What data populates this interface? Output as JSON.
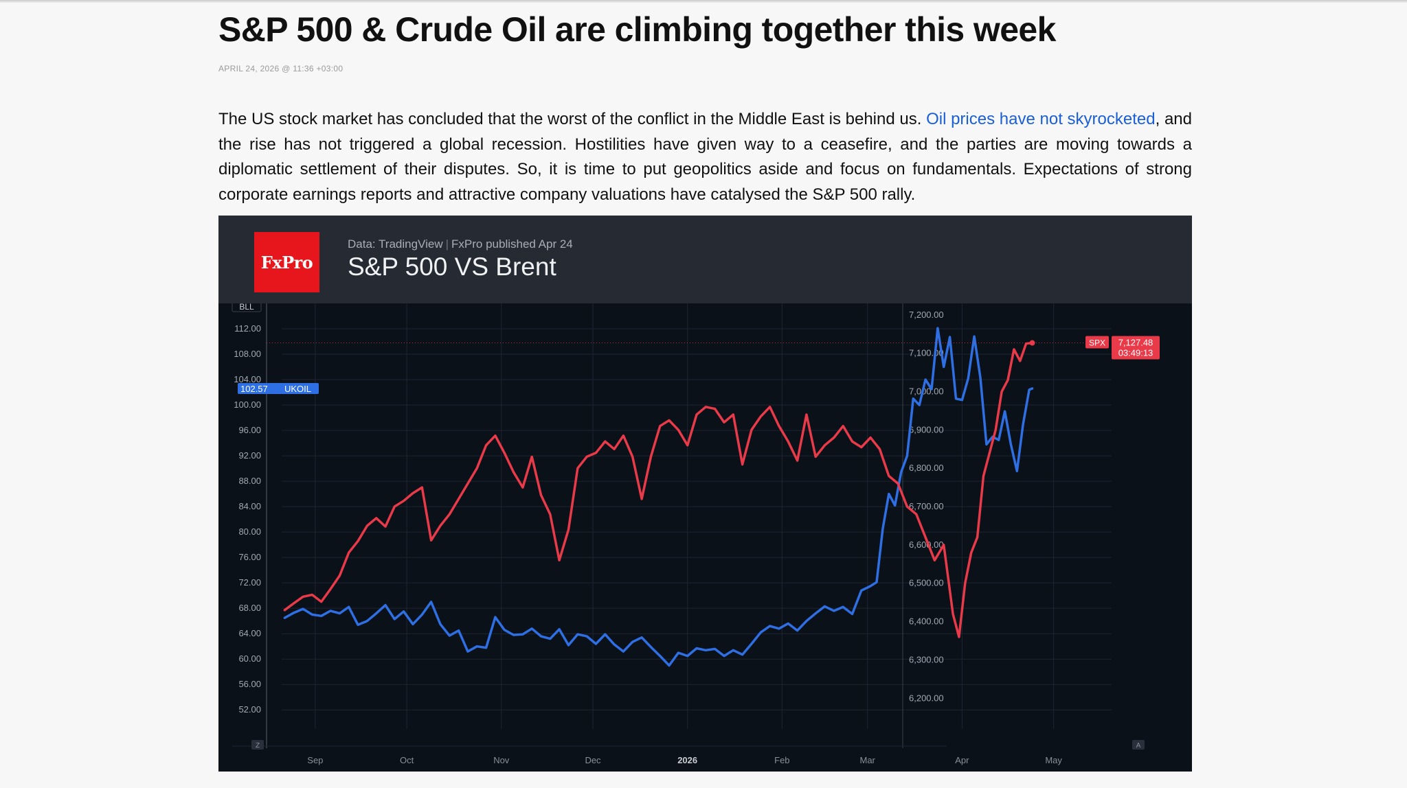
{
  "article": {
    "title": "S&P 500 & Crude Oil are climbing together this week",
    "meta": "APRIL 24, 2026 @ 11:36 +03:00",
    "para_before": "The US stock market has concluded that the worst of the conflict in the Middle East is behind us. ",
    "link_text": "Oil prices have not skyrocketed",
    "para_after": ", and the rise has not triggered a global recession. Hostilities have given way to a ceasefire, and the parties are moving towards a diplomatic settlement of their disputes. So, it is time to put geopolitics aside and focus on fundamentals. Expectations of strong corporate earnings reports and attractive company valuations have catalysed the S&P 500 rally.",
    "link_color": "#1a5fd6"
  },
  "chart_header": {
    "logo_text": "FxPro",
    "source": "Data: TradingView",
    "published": "FxPro published Apr 24",
    "title": "S&P 500 VS Brent"
  },
  "chart_data": {
    "type": "line",
    "title": "S&P 500 VS Brent",
    "x_ticks": [
      {
        "label": "Sep",
        "date": "2025-09-01",
        "bold": false
      },
      {
        "label": "Oct",
        "date": "2025-10-01",
        "bold": false
      },
      {
        "label": "Nov",
        "date": "2025-11-01",
        "bold": false
      },
      {
        "label": "Dec",
        "date": "2025-12-01",
        "bold": false
      },
      {
        "label": "2026",
        "date": "2026-01-01",
        "bold": true
      },
      {
        "label": "Feb",
        "date": "2026-02-01",
        "bold": false
      },
      {
        "label": "Mar",
        "date": "2026-03-01",
        "bold": false
      },
      {
        "label": "Apr",
        "date": "2026-04-01",
        "bold": false
      },
      {
        "label": "May",
        "date": "2026-05-01",
        "bold": false
      }
    ],
    "x_range": [
      "2025-08-21",
      "2026-05-20"
    ],
    "left_axis": {
      "unit_label": "BLL",
      "range": [
        49,
        116
      ],
      "ticks": [
        "52.00",
        "56.00",
        "60.00",
        "64.00",
        "68.00",
        "72.00",
        "76.00",
        "80.00",
        "84.00",
        "88.00",
        "92.00",
        "96.00",
        "100.00",
        "104.00",
        "108.00",
        "112.00"
      ],
      "tick_values": [
        52,
        56,
        60,
        64,
        68,
        72,
        76,
        80,
        84,
        88,
        92,
        96,
        100,
        104,
        108,
        112
      ]
    },
    "right_axis": {
      "range": [
        6120,
        7230
      ],
      "ticks": [
        "6,200.00",
        "6,300.00",
        "6,400.00",
        "6,500.00",
        "6,600.00",
        "6,700.00",
        "6,800.00",
        "6,900.00",
        "7,000.00",
        "7,100.00",
        "7,200.00"
      ],
      "tick_values": [
        6200,
        6300,
        6400,
        6500,
        6600,
        6700,
        6800,
        6900,
        7000,
        7100,
        7200
      ]
    },
    "grid": true,
    "corner_left": "Z",
    "corner_right": "A",
    "series": [
      {
        "name": "UKOIL",
        "axis": "left",
        "color": "#2f6fe4",
        "last_value_label": "102.57",
        "points": [
          [
            "2025-08-22",
            66.5
          ],
          [
            "2025-08-25",
            67.3
          ],
          [
            "2025-08-28",
            67.9
          ],
          [
            "2025-08-31",
            67.0
          ],
          [
            "2025-09-03",
            66.8
          ],
          [
            "2025-09-06",
            67.6
          ],
          [
            "2025-09-09",
            67.2
          ],
          [
            "2025-09-12",
            68.2
          ],
          [
            "2025-09-15",
            65.4
          ],
          [
            "2025-09-18",
            66.0
          ],
          [
            "2025-09-21",
            67.2
          ],
          [
            "2025-09-24",
            68.5
          ],
          [
            "2025-09-27",
            66.3
          ],
          [
            "2025-09-30",
            67.5
          ],
          [
            "2025-10-03",
            65.5
          ],
          [
            "2025-10-06",
            67.0
          ],
          [
            "2025-10-09",
            69.0
          ],
          [
            "2025-10-12",
            65.5
          ],
          [
            "2025-10-15",
            63.7
          ],
          [
            "2025-10-18",
            64.5
          ],
          [
            "2025-10-21",
            61.2
          ],
          [
            "2025-10-24",
            62.0
          ],
          [
            "2025-10-27",
            61.8
          ],
          [
            "2025-10-30",
            66.6
          ],
          [
            "2025-11-02",
            64.6
          ],
          [
            "2025-11-05",
            63.8
          ],
          [
            "2025-11-08",
            63.9
          ],
          [
            "2025-11-11",
            64.8
          ],
          [
            "2025-11-14",
            63.6
          ],
          [
            "2025-11-17",
            63.2
          ],
          [
            "2025-11-20",
            64.7
          ],
          [
            "2025-11-23",
            62.2
          ],
          [
            "2025-11-26",
            63.9
          ],
          [
            "2025-11-29",
            63.6
          ],
          [
            "2025-12-02",
            62.4
          ],
          [
            "2025-12-05",
            63.9
          ],
          [
            "2025-12-08",
            62.3
          ],
          [
            "2025-12-11",
            61.2
          ],
          [
            "2025-12-14",
            62.7
          ],
          [
            "2025-12-17",
            63.4
          ],
          [
            "2025-12-20",
            61.9
          ],
          [
            "2025-12-23",
            60.5
          ],
          [
            "2025-12-26",
            59.0
          ],
          [
            "2025-12-29",
            61.0
          ],
          [
            "2026-01-01",
            60.5
          ],
          [
            "2026-01-04",
            61.7
          ],
          [
            "2026-01-07",
            61.4
          ],
          [
            "2026-01-10",
            61.6
          ],
          [
            "2026-01-13",
            60.5
          ],
          [
            "2026-01-16",
            61.4
          ],
          [
            "2026-01-19",
            60.7
          ],
          [
            "2026-01-22",
            62.4
          ],
          [
            "2026-01-25",
            64.2
          ],
          [
            "2026-01-28",
            65.2
          ],
          [
            "2026-01-31",
            64.8
          ],
          [
            "2026-02-03",
            65.6
          ],
          [
            "2026-02-06",
            64.5
          ],
          [
            "2026-02-09",
            66.0
          ],
          [
            "2026-02-12",
            67.2
          ],
          [
            "2026-02-15",
            68.3
          ],
          [
            "2026-02-18",
            67.6
          ],
          [
            "2026-02-21",
            68.2
          ],
          [
            "2026-02-24",
            67.1
          ],
          [
            "2026-02-27",
            70.8
          ],
          [
            "2026-03-02",
            71.5
          ],
          [
            "2026-03-04",
            72.1
          ],
          [
            "2026-03-06",
            80.5
          ],
          [
            "2026-03-08",
            86.0
          ],
          [
            "2026-03-10",
            84.2
          ],
          [
            "2026-03-12",
            89.4
          ],
          [
            "2026-03-14",
            92.0
          ],
          [
            "2026-03-16",
            101.0
          ],
          [
            "2026-03-18",
            100.0
          ],
          [
            "2026-03-20",
            104.0
          ],
          [
            "2026-03-22",
            102.5
          ],
          [
            "2026-03-24",
            112.1
          ],
          [
            "2026-03-26",
            106.0
          ],
          [
            "2026-03-28",
            110.7
          ],
          [
            "2026-03-30",
            101.0
          ],
          [
            "2026-04-01",
            100.8
          ],
          [
            "2026-04-03",
            104.2
          ],
          [
            "2026-04-05",
            110.8
          ],
          [
            "2026-04-07",
            104.3
          ],
          [
            "2026-04-09",
            93.8
          ],
          [
            "2026-04-11",
            95.0
          ],
          [
            "2026-04-13",
            94.5
          ],
          [
            "2026-04-15",
            99.0
          ],
          [
            "2026-04-17",
            93.8
          ],
          [
            "2026-04-19",
            89.6
          ],
          [
            "2026-04-21",
            97.0
          ],
          [
            "2026-04-23",
            102.4
          ],
          [
            "2026-04-24",
            102.6
          ]
        ]
      },
      {
        "name": "SPX",
        "axis": "right",
        "color": "#e83a48",
        "last_value_label": "7,127.48",
        "countdown_label": "03:49:13",
        "points": [
          [
            "2025-08-22",
            6430
          ],
          [
            "2025-08-25",
            6448
          ],
          [
            "2025-08-28",
            6465
          ],
          [
            "2025-08-31",
            6470
          ],
          [
            "2025-09-03",
            6452
          ],
          [
            "2025-09-06",
            6485
          ],
          [
            "2025-09-09",
            6520
          ],
          [
            "2025-09-12",
            6580
          ],
          [
            "2025-09-15",
            6610
          ],
          [
            "2025-09-18",
            6650
          ],
          [
            "2025-09-21",
            6670
          ],
          [
            "2025-09-24",
            6648
          ],
          [
            "2025-09-27",
            6700
          ],
          [
            "2025-09-30",
            6715
          ],
          [
            "2025-10-03",
            6735
          ],
          [
            "2025-10-06",
            6750
          ],
          [
            "2025-10-09",
            6612
          ],
          [
            "2025-10-12",
            6650
          ],
          [
            "2025-10-15",
            6680
          ],
          [
            "2025-10-18",
            6720
          ],
          [
            "2025-10-21",
            6760
          ],
          [
            "2025-10-24",
            6800
          ],
          [
            "2025-10-27",
            6860
          ],
          [
            "2025-10-30",
            6885
          ],
          [
            "2025-11-02",
            6840
          ],
          [
            "2025-11-05",
            6790
          ],
          [
            "2025-11-08",
            6750
          ],
          [
            "2025-11-11",
            6830
          ],
          [
            "2025-11-14",
            6730
          ],
          [
            "2025-11-17",
            6680
          ],
          [
            "2025-11-20",
            6560
          ],
          [
            "2025-11-23",
            6640
          ],
          [
            "2025-11-26",
            6800
          ],
          [
            "2025-11-29",
            6830
          ],
          [
            "2025-12-02",
            6840
          ],
          [
            "2025-12-05",
            6870
          ],
          [
            "2025-12-08",
            6850
          ],
          [
            "2025-12-11",
            6885
          ],
          [
            "2025-12-14",
            6830
          ],
          [
            "2025-12-17",
            6720
          ],
          [
            "2025-12-20",
            6830
          ],
          [
            "2025-12-23",
            6910
          ],
          [
            "2025-12-26",
            6925
          ],
          [
            "2025-12-29",
            6900
          ],
          [
            "2026-01-01",
            6860
          ],
          [
            "2026-01-04",
            6940
          ],
          [
            "2026-01-07",
            6960
          ],
          [
            "2026-01-10",
            6955
          ],
          [
            "2026-01-13",
            6920
          ],
          [
            "2026-01-16",
            6940
          ],
          [
            "2026-01-19",
            6810
          ],
          [
            "2026-01-22",
            6900
          ],
          [
            "2026-01-25",
            6935
          ],
          [
            "2026-01-28",
            6960
          ],
          [
            "2026-01-31",
            6910
          ],
          [
            "2026-02-03",
            6870
          ],
          [
            "2026-02-06",
            6820
          ],
          [
            "2026-02-09",
            6940
          ],
          [
            "2026-02-12",
            6830
          ],
          [
            "2026-02-15",
            6860
          ],
          [
            "2026-02-18",
            6880
          ],
          [
            "2026-02-21",
            6910
          ],
          [
            "2026-02-24",
            6870
          ],
          [
            "2026-02-27",
            6855
          ],
          [
            "2026-03-02",
            6880
          ],
          [
            "2026-03-05",
            6850
          ],
          [
            "2026-03-08",
            6780
          ],
          [
            "2026-03-11",
            6760
          ],
          [
            "2026-03-14",
            6700
          ],
          [
            "2026-03-17",
            6680
          ],
          [
            "2026-03-20",
            6620
          ],
          [
            "2026-03-23",
            6560
          ],
          [
            "2026-03-26",
            6600
          ],
          [
            "2026-03-29",
            6420
          ],
          [
            "2026-03-31",
            6360
          ],
          [
            "2026-04-02",
            6500
          ],
          [
            "2026-04-04",
            6580
          ],
          [
            "2026-04-06",
            6620
          ],
          [
            "2026-04-08",
            6780
          ],
          [
            "2026-04-10",
            6840
          ],
          [
            "2026-04-12",
            6900
          ],
          [
            "2026-04-14",
            7000
          ],
          [
            "2026-04-16",
            7030
          ],
          [
            "2026-04-18",
            7110
          ],
          [
            "2026-04-20",
            7080
          ],
          [
            "2026-04-22",
            7125
          ],
          [
            "2026-04-24",
            7127
          ]
        ]
      }
    ]
  }
}
